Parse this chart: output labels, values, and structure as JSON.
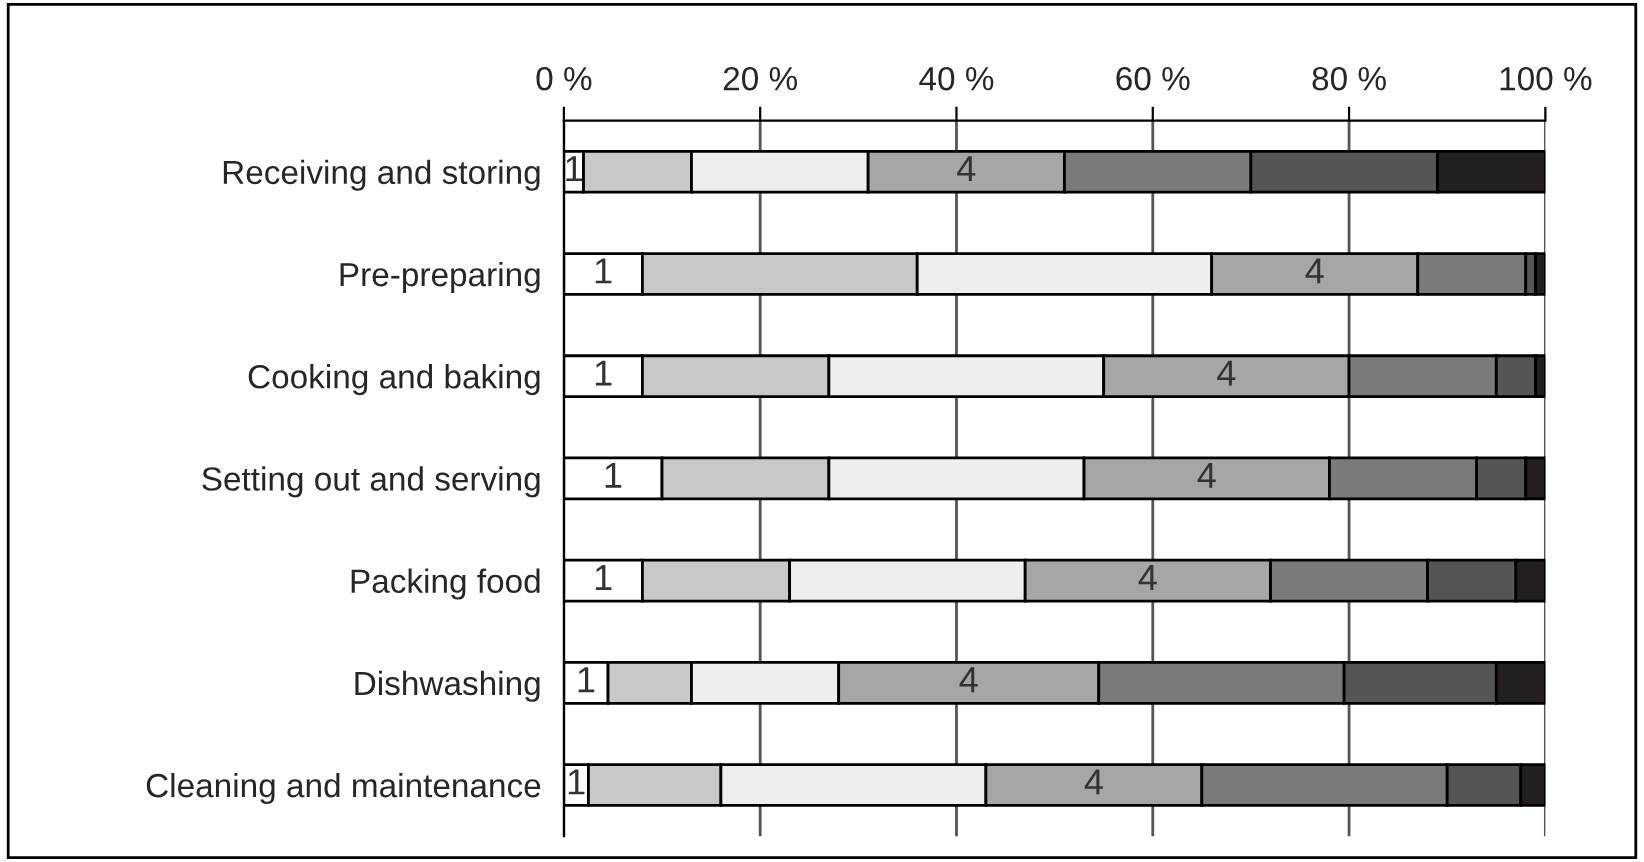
{
  "chart_data": {
    "type": "bar",
    "orientation": "horizontal",
    "stacked": true,
    "grid": "x",
    "legend": false,
    "categories": [
      "Receiving and storing",
      "Pre-preparing",
      "Cooking and baking",
      "Setting out and serving",
      "Packing food",
      "Dishwashing",
      "Cleaning and maintenance"
    ],
    "xlim": [
      0,
      100
    ],
    "xticks": [
      {
        "value": 0,
        "label": "0 %"
      },
      {
        "value": 20,
        "label": "20 %"
      },
      {
        "value": 40,
        "label": "40 %"
      },
      {
        "value": 60,
        "label": "60 %"
      },
      {
        "value": 80,
        "label": "80 %"
      },
      {
        "value": 100,
        "label": "100 %"
      }
    ],
    "series": [
      {
        "name": "1",
        "color": "#ffffff",
        "values": [
          2,
          8,
          8,
          10,
          8,
          4.5,
          2.5
        ]
      },
      {
        "color": "#c8c8c8",
        "values": [
          11,
          28,
          19,
          17,
          15,
          8.5,
          13.5
        ]
      },
      {
        "color": "#eeeeee",
        "values": [
          18,
          30,
          28,
          26,
          24,
          15,
          27
        ]
      },
      {
        "name": "4",
        "color": "#a6a6a6",
        "values": [
          20,
          21,
          25,
          25,
          25,
          26.5,
          22
        ]
      },
      {
        "color": "#7a7a7a",
        "values": [
          19,
          11,
          15,
          15,
          16,
          25,
          25
        ]
      },
      {
        "color": "#555555",
        "values": [
          19,
          1,
          4,
          5,
          9,
          15.5,
          7.5
        ]
      },
      {
        "color": "#231f20",
        "values": [
          11,
          1,
          1,
          2,
          3,
          5,
          2.5
        ]
      }
    ]
  }
}
